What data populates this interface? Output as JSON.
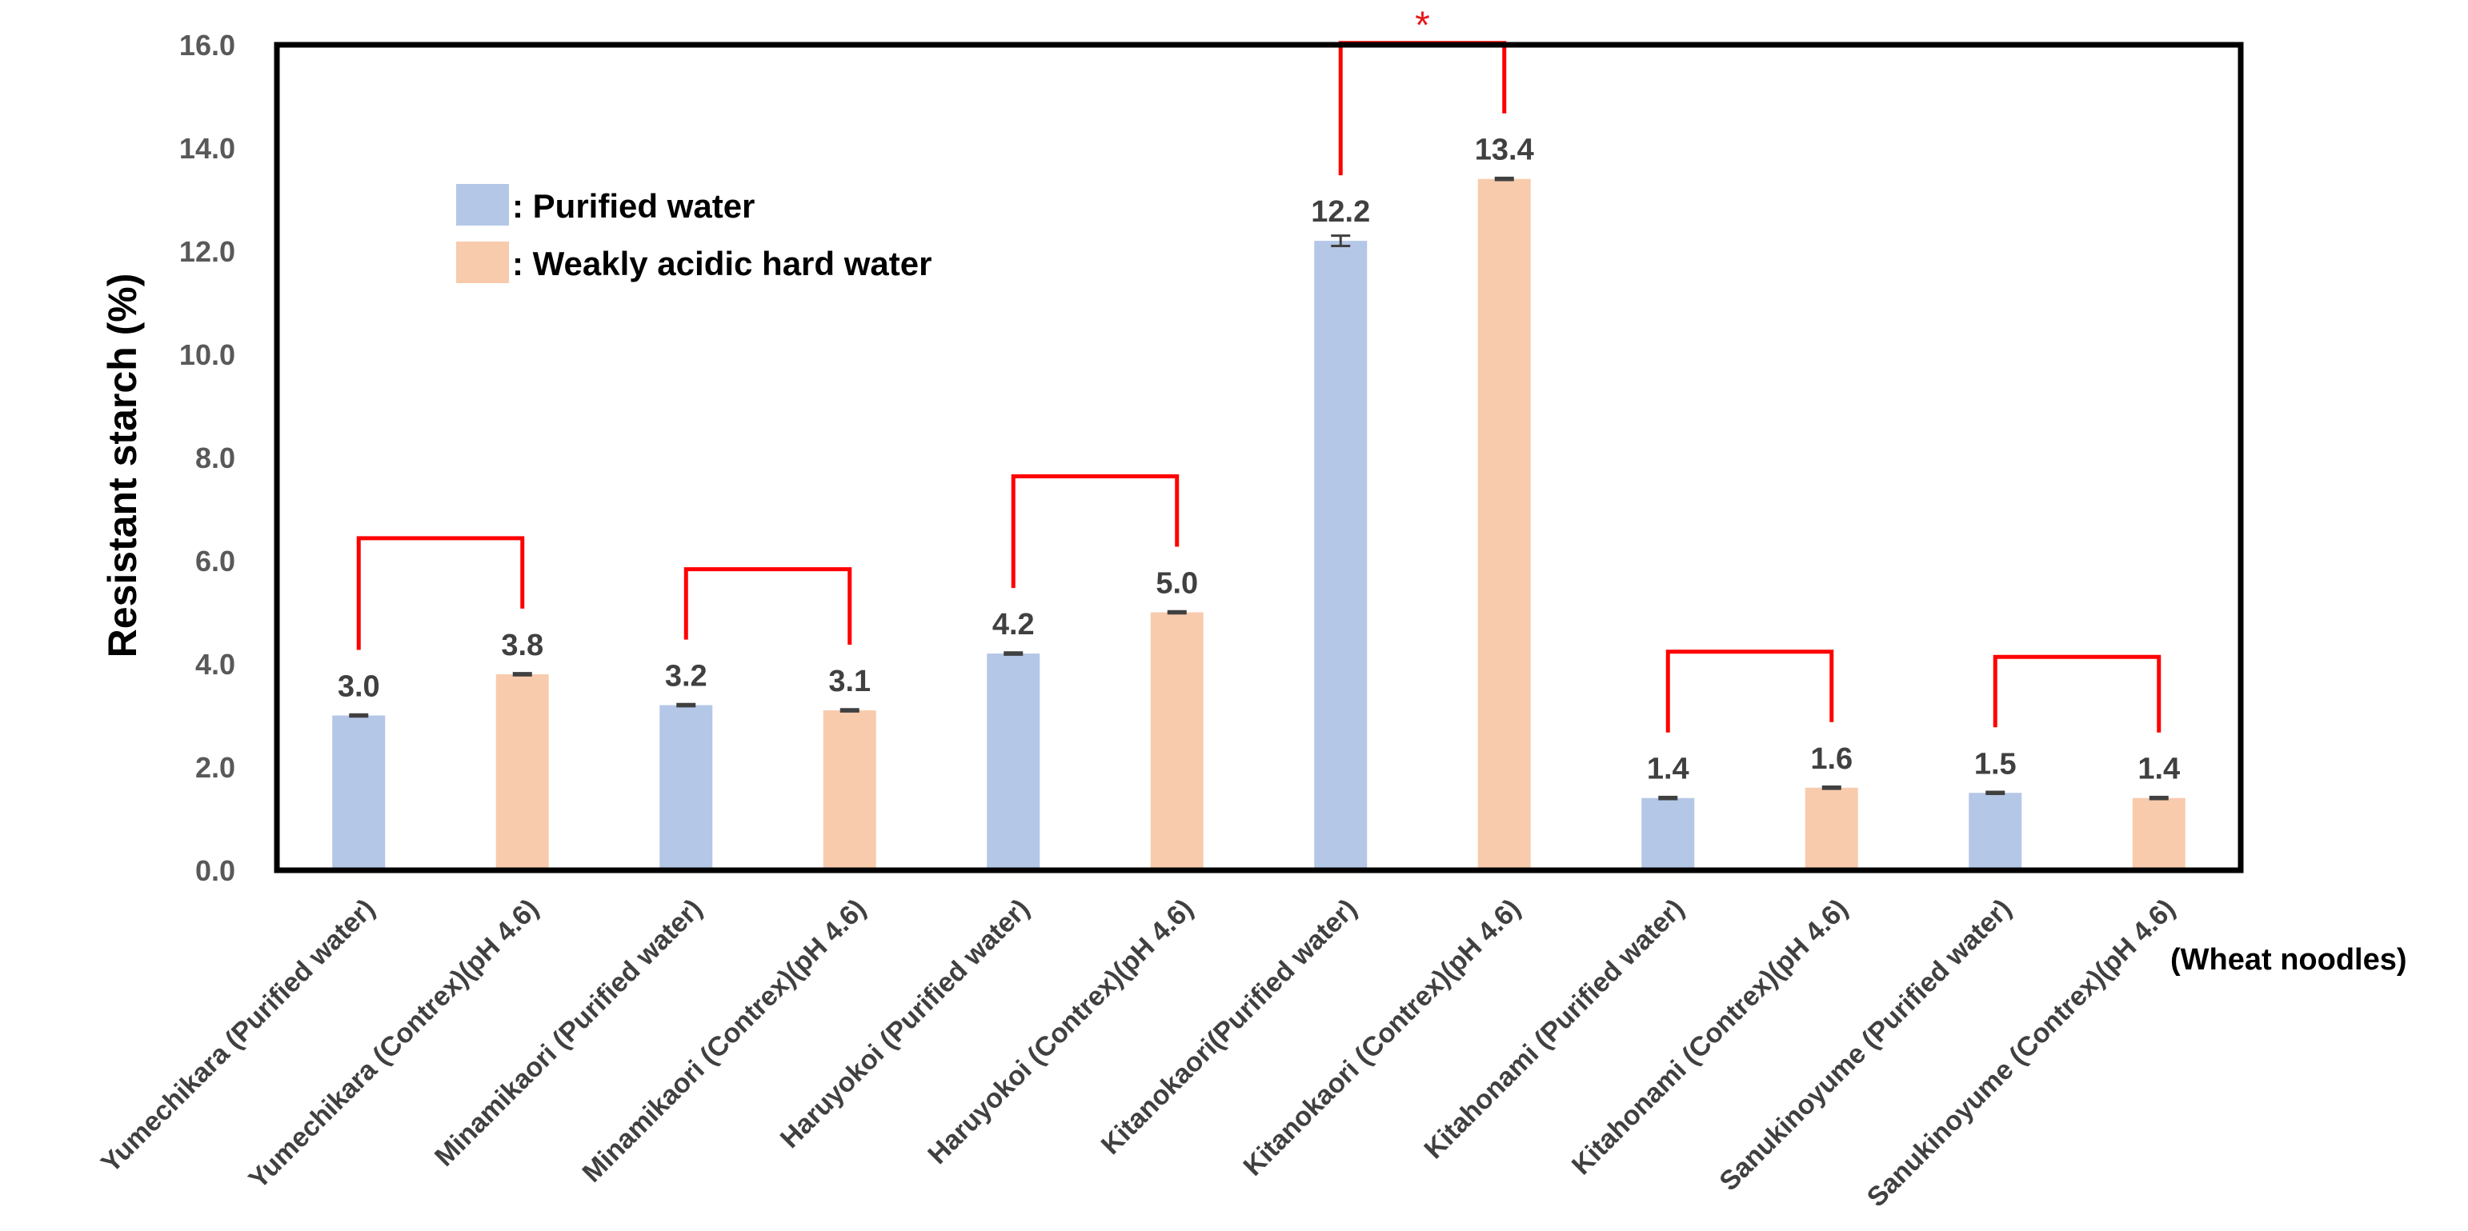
{
  "chart_data": {
    "type": "bar",
    "title": "",
    "xlabel": "",
    "ylabel": "Resistant starch (%)",
    "ylim": [
      0,
      16
    ],
    "yticks": [
      "0.0",
      "2.0",
      "4.0",
      "6.0",
      "8.0",
      "10.0",
      "12.0",
      "14.0",
      "16.0"
    ],
    "x_note": "(Wheat noodles)",
    "categories": [
      "Yumechikara (Purified water)",
      "Yumechikara  (Contrex)(pH 4.6)",
      "Minamikaori (Purified water)",
      "Minamikaori  (Contrex)(pH 4.6)",
      "Haruyokoi (Purified water)",
      "Haruyokoi (Contrex)(pH 4.6)",
      "Kitanokaori(Purified water)",
      "Kitanokaori (Contrex)(pH 4.6)",
      "Kitahonami (Purified water)",
      "Kitahonami (Contrex)(pH 4.6)",
      "Sanukinoyume (Purified water)",
      "Sanukinoyume (Contrex)(pH 4.6)"
    ],
    "values": [
      3.0,
      3.8,
      3.2,
      3.1,
      4.2,
      5.0,
      12.2,
      13.4,
      1.4,
      1.6,
      1.5,
      1.4
    ],
    "value_labels": [
      "3.0",
      "3.8",
      "3.2",
      "3.1",
      "4.2",
      "5.0",
      "12.2",
      "13.4",
      "1.4",
      "1.6",
      "1.5",
      "1.4"
    ],
    "errors": [
      0.02,
      0.02,
      0.02,
      0.02,
      0.02,
      0.02,
      0.1,
      0.02,
      0.02,
      0.02,
      0.02,
      0.02
    ],
    "series_index": [
      0,
      1,
      0,
      1,
      0,
      1,
      0,
      1,
      0,
      1,
      0,
      1
    ],
    "legend": [
      {
        "label": ": Purified water",
        "color": "#b4c7e7"
      },
      {
        "label": ": Weakly acidic hard water",
        "color": "#f8cbad"
      }
    ],
    "comparisons": [
      {
        "pair": [
          0,
          1
        ],
        "label": ""
      },
      {
        "pair": [
          2,
          3
        ],
        "label": ""
      },
      {
        "pair": [
          4,
          5
        ],
        "label": ""
      },
      {
        "pair": [
          6,
          7
        ],
        "label": "*"
      },
      {
        "pair": [
          8,
          9
        ],
        "label": ""
      },
      {
        "pair": [
          10,
          11
        ],
        "label": ""
      }
    ],
    "bracket_color": "#ff0000",
    "legend_position": "top-left"
  }
}
